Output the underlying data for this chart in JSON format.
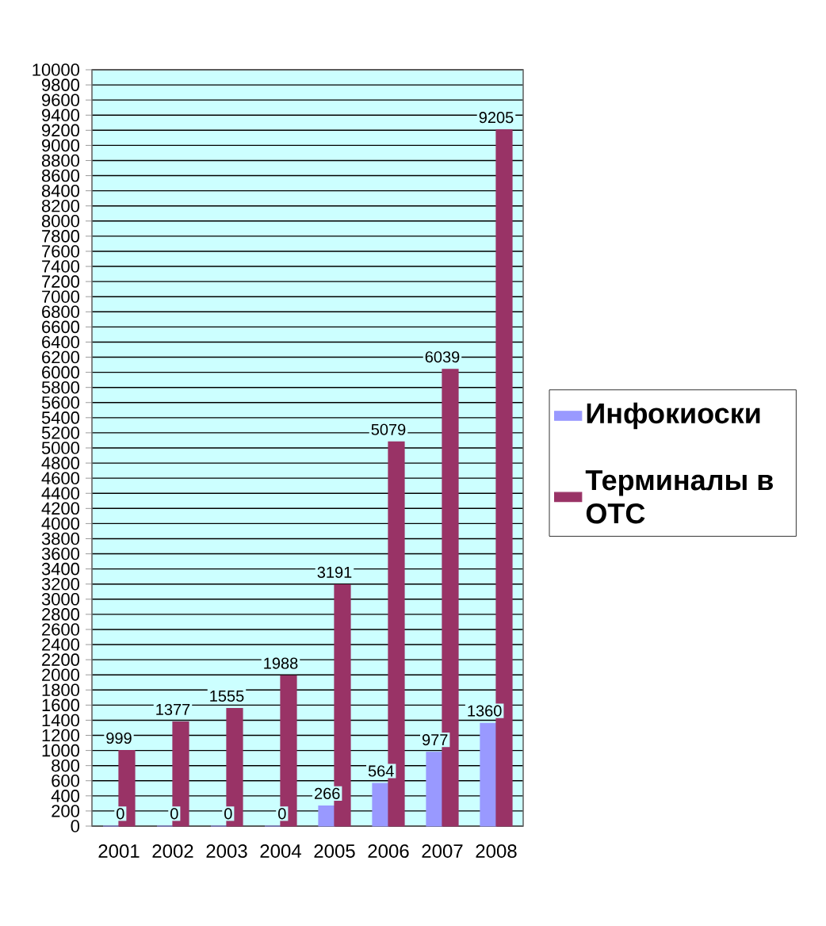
{
  "chart_data": {
    "type": "bar",
    "categories": [
      "2001",
      "2002",
      "2003",
      "2004",
      "2005",
      "2006",
      "2007",
      "2008"
    ],
    "series": [
      {
        "name": "Инфокиоски",
        "color": "#9999ff",
        "values": [
          0,
          0,
          0,
          0,
          266,
          564,
          977,
          1360
        ]
      },
      {
        "name": "Терминалы в ОТС",
        "color": "#993366",
        "values": [
          999,
          1377,
          1555,
          1988,
          3191,
          5079,
          6039,
          9205
        ]
      }
    ],
    "ylim": [
      0,
      10000
    ],
    "yticks": [
      0,
      200,
      400,
      600,
      800,
      1000,
      1200,
      1400,
      1600,
      1800,
      2000,
      2200,
      2400,
      2600,
      2800,
      3000,
      3200,
      3400,
      3600,
      3800,
      4000,
      4200,
      4400,
      4600,
      4800,
      5000,
      5200,
      5400,
      5600,
      5800,
      6000,
      6200,
      6400,
      6600,
      6800,
      7000,
      7200,
      7400,
      7600,
      7800,
      8000,
      8200,
      8400,
      8600,
      8800,
      9000,
      9200,
      9400,
      9600,
      9800,
      10000
    ],
    "grid": "y",
    "legend": "right",
    "data_labels": true
  }
}
